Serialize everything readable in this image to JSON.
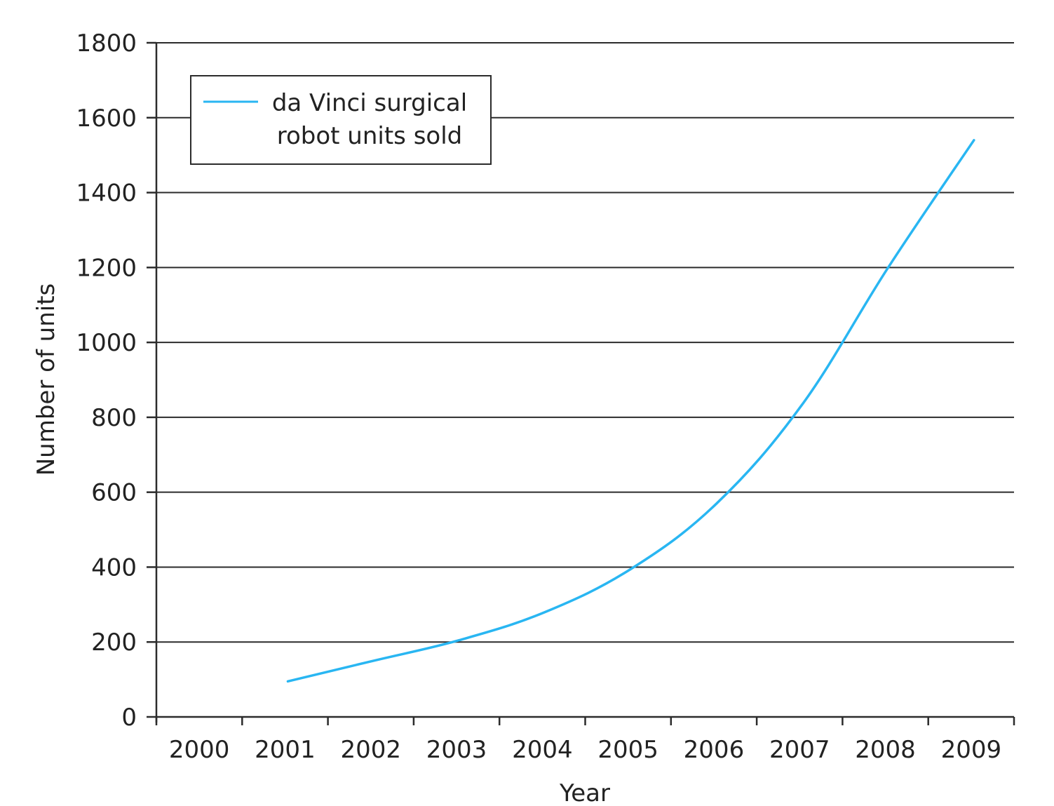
{
  "chart_data": {
    "type": "line",
    "title": "",
    "xlabel": "Year",
    "ylabel": "Number of units",
    "categories": [
      "2000",
      "2001",
      "2002",
      "2003",
      "2004",
      "2005",
      "2006",
      "2007",
      "2008",
      "2009"
    ],
    "ylim": [
      0,
      1800
    ],
    "y_ticks": [
      "0",
      "200",
      "400",
      "600",
      "800",
      "1000",
      "1200",
      "1400",
      "1600",
      "1800"
    ],
    "grid": true,
    "legend": {
      "placement": "top-left",
      "lines": [
        "da Vinci surgical",
        "robot units sold"
      ]
    },
    "series": [
      {
        "name": "da Vinci surgical robot units sold",
        "color": "#29b6f2",
        "x": [
          "2001",
          "2002",
          "2003",
          "2004",
          "2005",
          "2006",
          "2007",
          "2008",
          "2009"
        ],
        "values": [
          95,
          150,
          205,
          280,
          395,
          570,
          835,
          1200,
          1540
        ]
      }
    ]
  }
}
